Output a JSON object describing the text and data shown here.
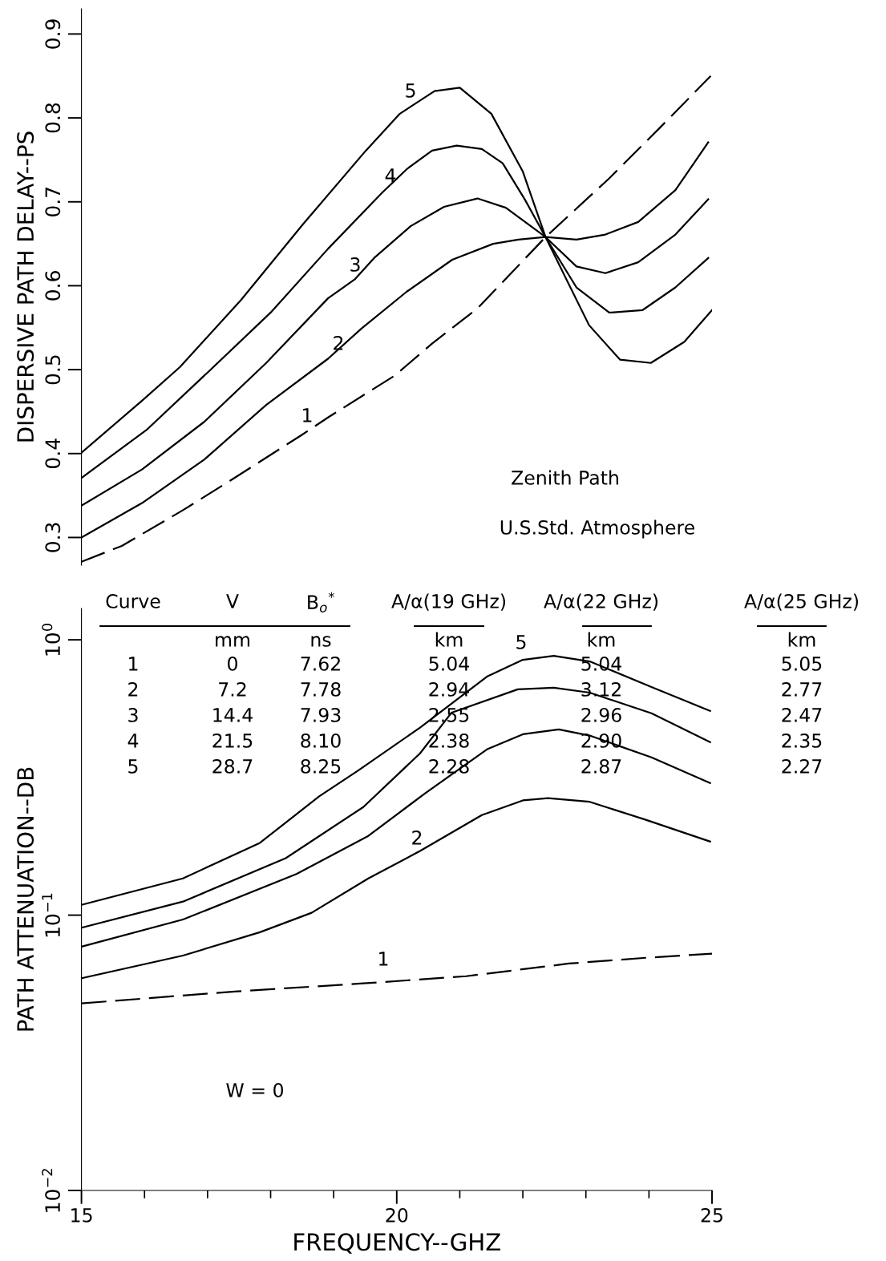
{
  "chart_data": [
    {
      "type": "line",
      "ylabel": "DISPERSIVE PATH DELAY--PS",
      "xlim": [
        15,
        25
      ],
      "ylim": [
        0.267,
        0.93
      ],
      "yticks": [
        0.3,
        0.4,
        0.5,
        0.6,
        0.7,
        0.8,
        0.9
      ],
      "tick_labels": "y",
      "legend": false,
      "grid": false,
      "marker": "none",
      "series": [
        {
          "name": "1",
          "color": "#000000",
          "line_style": "dashed",
          "x": [
            15,
            15.64,
            16.62,
            17.47,
            18.51,
            18.91,
            19.97,
            20.56,
            21.28,
            22.36,
            23.37,
            24.17,
            24.98
          ],
          "values": [
            0.271,
            0.29,
            0.333,
            0.373,
            0.423,
            0.443,
            0.493,
            0.531,
            0.573,
            0.658,
            0.728,
            0.788,
            0.85
          ]
        },
        {
          "name": "2",
          "color": "#000000",
          "line_style": "solid",
          "x": [
            15,
            15.96,
            16.95,
            17.93,
            18.91,
            19.44,
            20.16,
            20.88,
            21.53,
            21.93,
            22.36,
            22.85,
            23.31,
            23.83,
            24.42,
            24.94
          ],
          "values": [
            0.3,
            0.341,
            0.393,
            0.458,
            0.513,
            0.549,
            0.593,
            0.631,
            0.65,
            0.655,
            0.658,
            0.655,
            0.661,
            0.676,
            0.714,
            0.771
          ]
        },
        {
          "name": "3",
          "color": "#000000",
          "line_style": "solid",
          "x": [
            15,
            15.96,
            16.95,
            17.93,
            18.91,
            19.34,
            19.64,
            20.22,
            20.75,
            21.28,
            21.73,
            22.36,
            22.85,
            23.31,
            23.83,
            24.42,
            24.94
          ],
          "values": [
            0.338,
            0.381,
            0.438,
            0.508,
            0.585,
            0.608,
            0.633,
            0.671,
            0.694,
            0.704,
            0.693,
            0.658,
            0.623,
            0.615,
            0.628,
            0.661,
            0.703
          ]
        },
        {
          "name": "4",
          "color": "#000000",
          "line_style": "solid",
          "x": [
            15,
            16.03,
            17.02,
            18.0,
            18.91,
            19.77,
            20.16,
            20.56,
            20.95,
            21.35,
            21.68,
            22.03,
            22.36,
            22.85,
            23.37,
            23.9,
            24.42,
            24.94
          ],
          "values": [
            0.371,
            0.428,
            0.498,
            0.568,
            0.644,
            0.711,
            0.739,
            0.761,
            0.767,
            0.763,
            0.746,
            0.703,
            0.658,
            0.598,
            0.568,
            0.571,
            0.598,
            0.633
          ]
        },
        {
          "name": "5",
          "color": "#000000",
          "line_style": "solid",
          "x": [
            15,
            15.96,
            16.56,
            17.53,
            18.51,
            19.51,
            20.05,
            20.6,
            21.0,
            21.5,
            22.0,
            22.36,
            23.05,
            23.54,
            24.03,
            24.56,
            25.0
          ],
          "values": [
            0.401,
            0.463,
            0.503,
            0.583,
            0.673,
            0.761,
            0.805,
            0.832,
            0.836,
            0.805,
            0.736,
            0.658,
            0.553,
            0.512,
            0.508,
            0.533,
            0.571
          ]
        }
      ],
      "annotations": [
        "Zenith Path",
        "U.S.Std. Atmosphere"
      ]
    },
    {
      "type": "line",
      "xlabel": "FREQUENCY--GHZ",
      "ylabel": "PATH ATTENUATION--DB",
      "log": "y",
      "xlim": [
        15,
        25
      ],
      "xticks": [
        15,
        {
          "value": 16,
          "label": null
        },
        {
          "value": 17,
          "label": null
        },
        {
          "value": 18,
          "label": null
        },
        {
          "value": 19,
          "label": null
        },
        20,
        {
          "value": 21,
          "label": null
        },
        {
          "value": 22,
          "label": null
        },
        {
          "value": 23,
          "label": null
        },
        {
          "value": 24,
          "label": null
        },
        25
      ],
      "ylim": [
        0.01,
        1.3
      ],
      "yticks": [
        {
          "value": 1,
          "label": "10$^{0}$"
        },
        {
          "value": 0.1,
          "label": "10$^{−1}$"
        },
        {
          "value": 0.01,
          "label": "10$^{−2}$"
        }
      ],
      "legend": false,
      "grid": false,
      "marker": "none",
      "series": [
        {
          "name": "1",
          "color": "#000000",
          "line_style": "dashed",
          "x": [
            15,
            17.43,
            19.47,
            21.1,
            22.73,
            23.95,
            25.0
          ],
          "values": [
            0.0478,
            0.0528,
            0.0565,
            0.06,
            0.0667,
            0.07,
            0.0725
          ]
        },
        {
          "name": "2",
          "color": "#000000",
          "line_style": "solid",
          "x": [
            15,
            16.61,
            17.83,
            18.65,
            19.55,
            20.37,
            21.35,
            22.0,
            22.4,
            23.06,
            23.95,
            24.97
          ],
          "values": [
            0.059,
            0.0713,
            0.0867,
            0.102,
            0.136,
            0.171,
            0.231,
            0.261,
            0.266,
            0.258,
            0.222,
            0.185
          ]
        },
        {
          "color": "#000000",
          "line_style": "solid",
          "x": [
            15,
            16.61,
            18.41,
            19.55,
            20.45,
            21.43,
            22.0,
            22.57,
            23.06,
            24.04,
            24.97
          ],
          "values": [
            0.0768,
            0.0964,
            0.141,
            0.194,
            0.277,
            0.4,
            0.454,
            0.473,
            0.449,
            0.374,
            0.302
          ]
        },
        {
          "color": "#000000",
          "line_style": "solid",
          "x": [
            15,
            16.61,
            18.24,
            19.47,
            20.37,
            20.87,
            21.92,
            22.49,
            23.06,
            24.04,
            24.97
          ],
          "values": [
            0.09,
            0.112,
            0.161,
            0.247,
            0.387,
            0.544,
            0.661,
            0.67,
            0.643,
            0.541,
            0.425
          ]
        },
        {
          "name": "5",
          "color": "#000000",
          "line_style": "solid",
          "x": [
            15,
            16.61,
            17.83,
            18.77,
            19.38,
            20.37,
            21.43,
            22.0,
            22.49,
            23.06,
            24.04,
            24.97
          ],
          "values": [
            0.109,
            0.136,
            0.183,
            0.27,
            0.334,
            0.48,
            0.735,
            0.846,
            0.875,
            0.835,
            0.674,
            0.552
          ]
        }
      ],
      "annotations": [
        "W = 0",
        "Curve",
        "V",
        "B$_{o}$$^{*}$",
        "A/α(19 GHz)",
        "A/α(22 GHz)",
        "A/α(25 GHz)",
        "mm",
        "ns",
        "km",
        "km",
        "km",
        "1",
        "0",
        "7.62",
        "5.04",
        "5.04",
        "5.05",
        "2",
        "7.2",
        "7.78",
        "2.94",
        "3.12",
        "2.77",
        "3",
        "14.4",
        "7.93",
        "2.55",
        "2.96",
        "2.47",
        "4",
        "21.5",
        "8.10",
        "2.38",
        "2.90",
        "2.35",
        "5",
        "28.7",
        "8.25",
        "2.28",
        "2.87",
        "2.27"
      ]
    }
  ]
}
